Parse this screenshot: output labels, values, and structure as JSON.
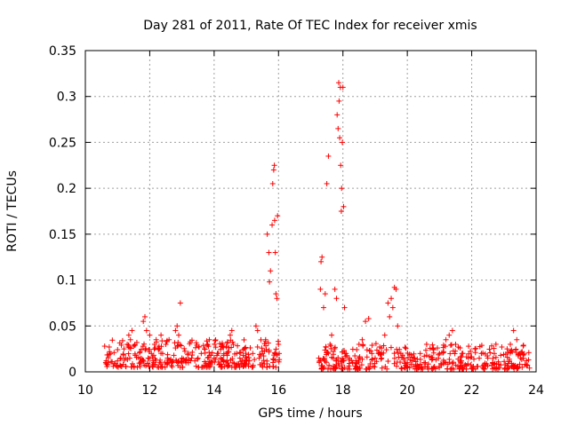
{
  "chart_data": {
    "type": "scatter",
    "title": "Day 281 of 2011, Rate Of TEC Index for receiver xmis",
    "xlabel": "GPS time / hours",
    "ylabel": "ROTI / TECUs",
    "xlim": [
      10,
      24
    ],
    "ylim": [
      0,
      0.35
    ],
    "xticks": [
      10,
      12,
      14,
      16,
      18,
      20,
      22,
      24
    ],
    "xtick_labels": [
      "10",
      "12",
      "14",
      "16",
      "18",
      "20",
      "22",
      "24"
    ],
    "yticks": [
      0,
      0.05,
      0.1,
      0.15,
      0.2,
      0.25,
      0.3,
      0.35
    ],
    "ytick_labels": [
      "0",
      "0.05",
      "0.1",
      "0.15",
      "0.2",
      "0.25",
      "0.3",
      "0.35"
    ],
    "grid": true,
    "marker": "+",
    "marker_color": "#ff0000",
    "series": [
      {
        "name": "ROTI",
        "points": [
          [
            10.6,
            0.028
          ],
          [
            10.65,
            0.012
          ],
          [
            10.7,
            0.01
          ],
          [
            10.75,
            0.022
          ],
          [
            10.8,
            0.011
          ],
          [
            10.9,
            0.009
          ],
          [
            11.0,
            0.012
          ],
          [
            11.1,
            0.015
          ],
          [
            11.2,
            0.025
          ],
          [
            11.3,
            0.03
          ],
          [
            11.35,
            0.04
          ],
          [
            11.4,
            0.035
          ],
          [
            11.45,
            0.045
          ],
          [
            11.5,
            0.028
          ],
          [
            11.55,
            0.018
          ],
          [
            11.6,
            0.032
          ],
          [
            11.7,
            0.022
          ],
          [
            11.8,
            0.055
          ],
          [
            11.85,
            0.06
          ],
          [
            11.9,
            0.045
          ],
          [
            11.95,
            0.015
          ],
          [
            12.0,
            0.04
          ],
          [
            12.05,
            0.02
          ],
          [
            12.1,
            0.012
          ],
          [
            12.2,
            0.035
          ],
          [
            12.3,
            0.025
          ],
          [
            12.35,
            0.04
          ],
          [
            12.4,
            0.02
          ],
          [
            12.5,
            0.03
          ],
          [
            12.55,
            0.015
          ],
          [
            12.6,
            0.035
          ],
          [
            12.7,
            0.01
          ],
          [
            12.75,
            0.018
          ],
          [
            12.8,
            0.045
          ],
          [
            12.85,
            0.05
          ],
          [
            12.9,
            0.04
          ],
          [
            12.95,
            0.075
          ],
          [
            13.0,
            0.015
          ],
          [
            13.1,
            0.012
          ],
          [
            13.2,
            0.01
          ],
          [
            13.3,
            0.015
          ],
          [
            13.4,
            0.012
          ],
          [
            13.5,
            0.015
          ],
          [
            13.6,
            0.02
          ],
          [
            13.7,
            0.025
          ],
          [
            13.8,
            0.03
          ],
          [
            13.85,
            0.035
          ],
          [
            13.9,
            0.018
          ],
          [
            14.0,
            0.015
          ],
          [
            14.1,
            0.02
          ],
          [
            14.2,
            0.015
          ],
          [
            14.3,
            0.018
          ],
          [
            14.4,
            0.012
          ],
          [
            14.5,
            0.04
          ],
          [
            14.55,
            0.045
          ],
          [
            14.6,
            0.03
          ],
          [
            14.7,
            0.02
          ],
          [
            14.8,
            0.015
          ],
          [
            14.9,
            0.018
          ],
          [
            15.0,
            0.015
          ],
          [
            15.1,
            0.012
          ],
          [
            15.2,
            0.02
          ],
          [
            15.3,
            0.05
          ],
          [
            15.35,
            0.045
          ],
          [
            15.4,
            0.015
          ],
          [
            15.5,
            0.02
          ],
          [
            15.6,
            0.035
          ],
          [
            15.65,
            0.15
          ],
          [
            15.7,
            0.13
          ],
          [
            15.72,
            0.098
          ],
          [
            15.75,
            0.11
          ],
          [
            15.8,
            0.16
          ],
          [
            15.82,
            0.205
          ],
          [
            15.85,
            0.22
          ],
          [
            15.87,
            0.225
          ],
          [
            15.88,
            0.165
          ],
          [
            15.9,
            0.13
          ],
          [
            15.92,
            0.085
          ],
          [
            15.95,
            0.08
          ],
          [
            15.97,
            0.17
          ],
          [
            16.0,
            0.03
          ],
          [
            16.02,
            0.02
          ],
          [
            17.25,
            0.015
          ],
          [
            17.3,
            0.09
          ],
          [
            17.32,
            0.12
          ],
          [
            17.35,
            0.125
          ],
          [
            17.4,
            0.07
          ],
          [
            17.45,
            0.085
          ],
          [
            17.5,
            0.205
          ],
          [
            17.55,
            0.235
          ],
          [
            17.6,
            0.03
          ],
          [
            17.65,
            0.04
          ],
          [
            17.7,
            0.015
          ],
          [
            17.75,
            0.09
          ],
          [
            17.8,
            0.08
          ],
          [
            17.82,
            0.28
          ],
          [
            17.85,
            0.265
          ],
          [
            17.87,
            0.315
          ],
          [
            17.88,
            0.295
          ],
          [
            17.9,
            0.255
          ],
          [
            17.92,
            0.31
          ],
          [
            17.93,
            0.225
          ],
          [
            17.95,
            0.175
          ],
          [
            17.96,
            0.2
          ],
          [
            17.98,
            0.25
          ],
          [
            18.0,
            0.31
          ],
          [
            18.02,
            0.18
          ],
          [
            18.05,
            0.07
          ],
          [
            18.1,
            0.02
          ],
          [
            18.2,
            0.015
          ],
          [
            18.3,
            0.01
          ],
          [
            18.4,
            0.012
          ],
          [
            18.5,
            0.03
          ],
          [
            18.6,
            0.035
          ],
          [
            18.7,
            0.055
          ],
          [
            18.8,
            0.058
          ],
          [
            18.9,
            0.02
          ],
          [
            19.0,
            0.015
          ],
          [
            19.1,
            0.02
          ],
          [
            19.2,
            0.015
          ],
          [
            19.3,
            0.04
          ],
          [
            19.4,
            0.075
          ],
          [
            19.45,
            0.06
          ],
          [
            19.5,
            0.08
          ],
          [
            19.55,
            0.07
          ],
          [
            19.6,
            0.092
          ],
          [
            19.65,
            0.09
          ],
          [
            19.7,
            0.05
          ],
          [
            19.8,
            0.02
          ],
          [
            19.9,
            0.015
          ],
          [
            20.0,
            0.01
          ],
          [
            20.2,
            0.015
          ],
          [
            20.4,
            0.02
          ],
          [
            20.6,
            0.03
          ],
          [
            20.8,
            0.025
          ],
          [
            21.0,
            0.02
          ],
          [
            21.2,
            0.035
          ],
          [
            21.3,
            0.04
          ],
          [
            21.4,
            0.045
          ],
          [
            21.5,
            0.03
          ],
          [
            21.7,
            0.02
          ],
          [
            21.9,
            0.015
          ],
          [
            22.1,
            0.025
          ],
          [
            22.3,
            0.02
          ],
          [
            22.5,
            0.015
          ],
          [
            22.7,
            0.02
          ],
          [
            22.9,
            0.018
          ],
          [
            23.1,
            0.025
          ],
          [
            23.2,
            0.03
          ],
          [
            23.3,
            0.045
          ],
          [
            23.4,
            0.035
          ],
          [
            23.5,
            0.02
          ],
          [
            23.6,
            0.015
          ],
          [
            23.7,
            0.012
          ]
        ],
        "band_segments": [
          {
            "x0": 10.6,
            "x1": 16.05,
            "base": 0.005,
            "spread": 0.03
          },
          {
            "x0": 17.25,
            "x1": 23.8,
            "base": 0.003,
            "spread": 0.028
          }
        ]
      }
    ]
  }
}
